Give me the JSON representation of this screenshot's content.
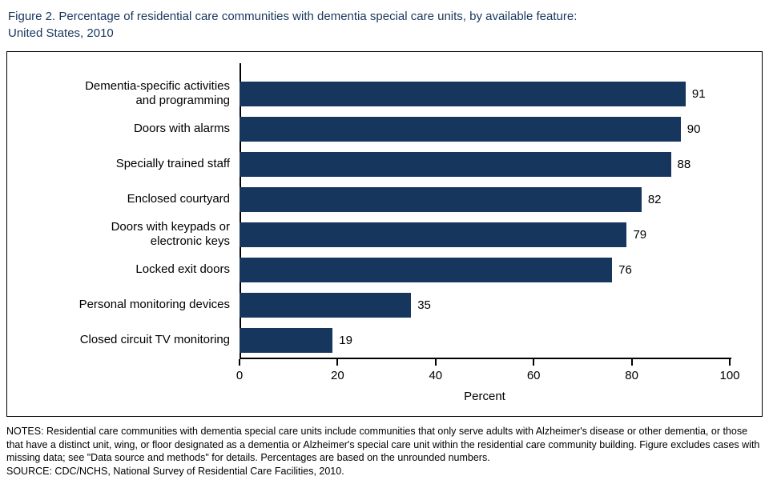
{
  "title": "Figure 2. Percentage of residential care communities with dementia special care units, by available feature:\nUnited States, 2010",
  "chart_data": {
    "type": "bar",
    "orientation": "horizontal",
    "categories": [
      "Dementia-specific activities\nand programming",
      "Doors with alarms",
      "Specially trained staff",
      "Enclosed courtyard",
      "Doors with keypads or\nelectronic keys",
      "Locked exit doors",
      "Personal monitoring devices",
      "Closed circuit TV monitoring"
    ],
    "values": [
      91,
      90,
      88,
      82,
      79,
      76,
      35,
      19
    ],
    "title": "Percentage of residential care communities with dementia special care units, by available feature: United States, 2010",
    "xlabel": "Percent",
    "ylabel": "",
    "xlim": [
      0,
      100
    ],
    "xticks": [
      0,
      20,
      40,
      60,
      80,
      100
    ],
    "value_labels_shown": true,
    "grid": false,
    "legend": "none"
  },
  "colors": {
    "bar": "#17365d",
    "title_text": "#17365d",
    "axis": "#000000",
    "frame_border": "#000000"
  },
  "notes": "NOTES: Residential care communities with dementia special care units include communities that only serve adults with Alzheimer's disease or other dementia, or those that have a distinct unit, wing, or floor designated as a dementia or Alzheimer's special care unit within the residential care community building. Figure excludes cases with missing data; see \"Data source and methods\" for details. Percentages are based on the unrounded numbers.",
  "source": "SOURCE: CDC/NCHS, National Survey of Residential Care Facilities, 2010."
}
